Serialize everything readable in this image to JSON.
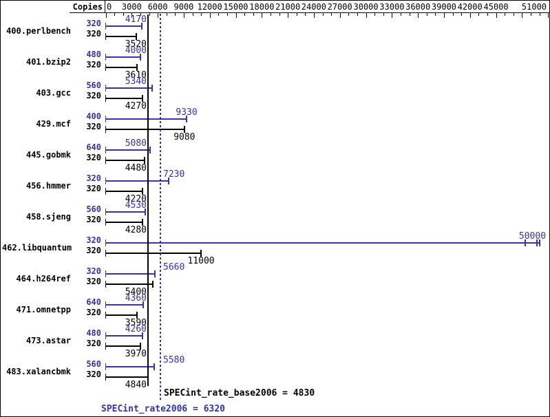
{
  "header": {
    "copies_label": "Copies"
  },
  "chart_data": {
    "type": "bar",
    "orientation": "horizontal",
    "title": "",
    "x_axis": {
      "min": 0,
      "max": 51000,
      "minor_tick_step": 1000,
      "major_tick_step": 3000,
      "labeled_ticks": [
        0,
        3000,
        6000,
        9000,
        12000,
        15000,
        18000,
        21000,
        24000,
        27000,
        30000,
        33000,
        36000,
        39000,
        42000,
        45000,
        51000
      ]
    },
    "copies_column_header": "Copies",
    "series_colors": {
      "peak": "#3333aa",
      "base": "#000000"
    },
    "benchmarks": [
      {
        "name": "400.perlbench",
        "peak": {
          "copies": "320",
          "value": 4170
        },
        "base": {
          "copies": "320",
          "value": 3520
        }
      },
      {
        "name": "401.bzip2",
        "peak": {
          "copies": "480",
          "value": 4000
        },
        "base": {
          "copies": "320",
          "value": 3610
        }
      },
      {
        "name": "403.gcc",
        "peak": {
          "copies": "560",
          "value": 5340
        },
        "base": {
          "copies": "320",
          "value": 4270
        }
      },
      {
        "name": "429.mcf",
        "peak": {
          "copies": "400",
          "value": 9330
        },
        "base": {
          "copies": "320",
          "value": 9080
        }
      },
      {
        "name": "445.gobmk",
        "peak": {
          "copies": "640",
          "value": 5080
        },
        "base": {
          "copies": "320",
          "value": 4480
        }
      },
      {
        "name": "456.hmmer",
        "peak": {
          "copies": "320",
          "value": 7230
        },
        "base": {
          "copies": "320",
          "value": 4220
        }
      },
      {
        "name": "458.sjeng",
        "peak": {
          "copies": "560",
          "value": 4530
        },
        "base": {
          "copies": "320",
          "value": 4280
        }
      },
      {
        "name": "462.libquantum",
        "peak": {
          "copies": "320",
          "value": 50000,
          "extra_tick_values": [
            48400,
            49700
          ]
        },
        "base": {
          "copies": "320",
          "value": 11000
        }
      },
      {
        "name": "464.h264ref",
        "peak": {
          "copies": "320",
          "value": 5660
        },
        "base": {
          "copies": "320",
          "value": 5400
        }
      },
      {
        "name": "471.omnetpp",
        "peak": {
          "copies": "640",
          "value": 4360
        },
        "base": {
          "copies": "320",
          "value": 3590
        }
      },
      {
        "name": "473.astar",
        "peak": {
          "copies": "480",
          "value": 4260
        },
        "base": {
          "copies": "320",
          "value": 3970
        }
      },
      {
        "name": "483.xalancbmk",
        "peak": {
          "copies": "560",
          "value": 5580
        },
        "base": {
          "copies": "320",
          "value": 4840
        }
      }
    ],
    "reference_lines": [
      {
        "id": "base_mean",
        "text": "SPECint_rate_base2006 = 4830",
        "value": 4830,
        "style": "solid",
        "color": "#000000"
      },
      {
        "id": "peak_mean",
        "text": "SPECint_rate2006 = 6320",
        "value": 6320,
        "style": "dotted",
        "color": "#3333aa"
      }
    ]
  }
}
